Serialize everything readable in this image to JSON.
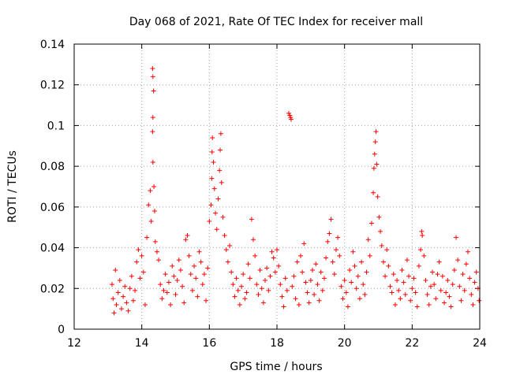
{
  "chart_data": {
    "type": "scatter",
    "title": "Day 068 of 2021, Rate Of TEC Index for receiver mall",
    "xlabel": "GPS time / hours",
    "ylabel": "ROTI / TECUs",
    "xlim": [
      12,
      24
    ],
    "ylim": [
      0,
      0.14
    ],
    "xticks": [
      12,
      14,
      16,
      18,
      20,
      22,
      24
    ],
    "xtick_labels": [
      "12",
      "14",
      "16",
      "18",
      "20",
      "22",
      "24"
    ],
    "yticks": [
      0,
      0.02,
      0.04,
      0.06,
      0.08,
      0.1,
      0.12,
      0.14
    ],
    "ytick_labels": [
      "0",
      "0.02",
      "0.04",
      "0.06",
      "0.08",
      "0.1",
      "0.12",
      "0.14"
    ],
    "grid": true,
    "marker": "+",
    "color": "#ff0000",
    "series": [
      {
        "name": "ROTI",
        "points": [
          [
            13.12,
            0.022
          ],
          [
            13.15,
            0.015
          ],
          [
            13.18,
            0.008
          ],
          [
            13.22,
            0.029
          ],
          [
            13.25,
            0.012
          ],
          [
            13.3,
            0.018
          ],
          [
            13.35,
            0.024
          ],
          [
            13.4,
            0.01
          ],
          [
            13.45,
            0.016
          ],
          [
            13.5,
            0.021
          ],
          [
            13.55,
            0.013
          ],
          [
            13.6,
            0.009
          ],
          [
            13.65,
            0.02
          ],
          [
            13.7,
            0.026
          ],
          [
            13.75,
            0.014
          ],
          [
            13.8,
            0.019
          ],
          [
            13.85,
            0.033
          ],
          [
            13.9,
            0.039
          ],
          [
            13.95,
            0.025
          ],
          [
            14.0,
            0.036
          ],
          [
            14.05,
            0.028
          ],
          [
            14.1,
            0.012
          ],
          [
            14.15,
            0.045
          ],
          [
            14.2,
            0.061
          ],
          [
            14.25,
            0.068
          ],
          [
            14.28,
            0.053
          ],
          [
            14.32,
            0.128
          ],
          [
            14.33,
            0.124
          ],
          [
            14.35,
            0.117
          ],
          [
            14.33,
            0.104
          ],
          [
            14.32,
            0.097
          ],
          [
            14.33,
            0.082
          ],
          [
            14.36,
            0.07
          ],
          [
            14.38,
            0.058
          ],
          [
            14.4,
            0.043
          ],
          [
            14.45,
            0.038
          ],
          [
            14.5,
            0.034
          ],
          [
            14.55,
            0.022
          ],
          [
            14.6,
            0.015
          ],
          [
            14.65,
            0.019
          ],
          [
            14.7,
            0.027
          ],
          [
            14.75,
            0.018
          ],
          [
            14.8,
            0.023
          ],
          [
            14.85,
            0.012
          ],
          [
            14.9,
            0.031
          ],
          [
            14.95,
            0.026
          ],
          [
            15.0,
            0.017
          ],
          [
            15.05,
            0.024
          ],
          [
            15.1,
            0.034
          ],
          [
            15.15,
            0.029
          ],
          [
            15.2,
            0.021
          ],
          [
            15.25,
            0.013
          ],
          [
            15.3,
            0.044
          ],
          [
            15.35,
            0.046
          ],
          [
            15.4,
            0.036
          ],
          [
            15.45,
            0.027
          ],
          [
            15.5,
            0.019
          ],
          [
            15.55,
            0.031
          ],
          [
            15.6,
            0.025
          ],
          [
            15.65,
            0.016
          ],
          [
            15.7,
            0.038
          ],
          [
            15.75,
            0.033
          ],
          [
            15.8,
            0.022
          ],
          [
            15.85,
            0.027
          ],
          [
            15.9,
            0.014
          ],
          [
            15.95,
            0.03
          ],
          [
            16.0,
            0.053
          ],
          [
            16.05,
            0.061
          ],
          [
            16.07,
            0.074
          ],
          [
            16.08,
            0.087
          ],
          [
            16.09,
            0.094
          ],
          [
            16.12,
            0.082
          ],
          [
            16.15,
            0.069
          ],
          [
            16.18,
            0.057
          ],
          [
            16.22,
            0.049
          ],
          [
            16.26,
            0.064
          ],
          [
            16.3,
            0.078
          ],
          [
            16.32,
            0.088
          ],
          [
            16.34,
            0.096
          ],
          [
            16.36,
            0.072
          ],
          [
            16.4,
            0.055
          ],
          [
            16.45,
            0.046
          ],
          [
            16.5,
            0.039
          ],
          [
            16.55,
            0.033
          ],
          [
            16.6,
            0.041
          ],
          [
            16.65,
            0.028
          ],
          [
            16.7,
            0.022
          ],
          [
            16.75,
            0.016
          ],
          [
            16.8,
            0.025
          ],
          [
            16.85,
            0.019
          ],
          [
            16.9,
            0.012
          ],
          [
            16.95,
            0.021
          ],
          [
            17.0,
            0.027
          ],
          [
            17.05,
            0.015
          ],
          [
            17.1,
            0.018
          ],
          [
            17.15,
            0.032
          ],
          [
            17.2,
            0.025
          ],
          [
            17.25,
            0.054
          ],
          [
            17.3,
            0.044
          ],
          [
            17.35,
            0.036
          ],
          [
            17.4,
            0.022
          ],
          [
            17.45,
            0.017
          ],
          [
            17.5,
            0.029
          ],
          [
            17.55,
            0.02
          ],
          [
            17.6,
            0.013
          ],
          [
            17.65,
            0.024
          ],
          [
            17.7,
            0.03
          ],
          [
            17.75,
            0.019
          ],
          [
            17.8,
            0.026
          ],
          [
            17.85,
            0.038
          ],
          [
            17.9,
            0.035
          ],
          [
            17.95,
            0.028
          ],
          [
            18.0,
            0.039
          ],
          [
            18.05,
            0.031
          ],
          [
            18.1,
            0.022
          ],
          [
            18.15,
            0.016
          ],
          [
            18.2,
            0.011
          ],
          [
            18.25,
            0.025
          ],
          [
            18.3,
            0.019
          ],
          [
            18.35,
            0.106
          ],
          [
            18.38,
            0.105
          ],
          [
            18.4,
            0.104
          ],
          [
            18.42,
            0.103
          ],
          [
            18.45,
            0.021
          ],
          [
            18.5,
            0.026
          ],
          [
            18.55,
            0.015
          ],
          [
            18.6,
            0.033
          ],
          [
            18.65,
            0.012
          ],
          [
            18.7,
            0.036
          ],
          [
            18.75,
            0.028
          ],
          [
            18.8,
            0.042
          ],
          [
            18.85,
            0.023
          ],
          [
            18.9,
            0.018
          ],
          [
            18.95,
            0.013
          ],
          [
            19.0,
            0.024
          ],
          [
            19.05,
            0.029
          ],
          [
            19.1,
            0.017
          ],
          [
            19.15,
            0.032
          ],
          [
            19.2,
            0.022
          ],
          [
            19.25,
            0.014
          ],
          [
            19.3,
            0.028
          ],
          [
            19.35,
            0.019
          ],
          [
            19.4,
            0.025
          ],
          [
            19.45,
            0.035
          ],
          [
            19.5,
            0.043
          ],
          [
            19.55,
            0.047
          ],
          [
            19.6,
            0.054
          ],
          [
            19.65,
            0.033
          ],
          [
            19.7,
            0.027
          ],
          [
            19.75,
            0.039
          ],
          [
            19.8,
            0.045
          ],
          [
            19.85,
            0.036
          ],
          [
            19.9,
            0.021
          ],
          [
            19.95,
            0.015
          ],
          [
            20.0,
            0.024
          ],
          [
            20.05,
            0.018
          ],
          [
            20.1,
            0.011
          ],
          [
            20.15,
            0.029
          ],
          [
            20.2,
            0.023
          ],
          [
            20.25,
            0.038
          ],
          [
            20.3,
            0.031
          ],
          [
            20.35,
            0.02
          ],
          [
            20.4,
            0.026
          ],
          [
            20.45,
            0.015
          ],
          [
            20.5,
            0.033
          ],
          [
            20.55,
            0.022
          ],
          [
            20.6,
            0.017
          ],
          [
            20.65,
            0.028
          ],
          [
            20.7,
            0.044
          ],
          [
            20.75,
            0.036
          ],
          [
            20.8,
            0.052
          ],
          [
            20.85,
            0.067
          ],
          [
            20.87,
            0.079
          ],
          [
            20.89,
            0.086
          ],
          [
            20.91,
            0.092
          ],
          [
            20.93,
            0.097
          ],
          [
            20.95,
            0.081
          ],
          [
            20.98,
            0.065
          ],
          [
            21.02,
            0.055
          ],
          [
            21.06,
            0.048
          ],
          [
            21.1,
            0.041
          ],
          [
            21.15,
            0.033
          ],
          [
            21.2,
            0.026
          ],
          [
            21.25,
            0.039
          ],
          [
            21.3,
            0.031
          ],
          [
            21.35,
            0.021
          ],
          [
            21.4,
            0.018
          ],
          [
            21.45,
            0.027
          ],
          [
            21.5,
            0.012
          ],
          [
            21.55,
            0.024
          ],
          [
            21.6,
            0.019
          ],
          [
            21.65,
            0.015
          ],
          [
            21.7,
            0.029
          ],
          [
            21.75,
            0.023
          ],
          [
            21.8,
            0.017
          ],
          [
            21.85,
            0.034
          ],
          [
            21.9,
            0.026
          ],
          [
            21.95,
            0.014
          ],
          [
            22.0,
            0.02
          ],
          [
            22.05,
            0.025
          ],
          [
            22.1,
            0.018
          ],
          [
            22.15,
            0.011
          ],
          [
            22.2,
            0.031
          ],
          [
            22.25,
            0.039
          ],
          [
            22.28,
            0.048
          ],
          [
            22.3,
            0.046
          ],
          [
            22.35,
            0.036
          ],
          [
            22.4,
            0.024
          ],
          [
            22.45,
            0.017
          ],
          [
            22.5,
            0.012
          ],
          [
            22.55,
            0.021
          ],
          [
            22.6,
            0.028
          ],
          [
            22.65,
            0.022
          ],
          [
            22.7,
            0.015
          ],
          [
            22.75,
            0.027
          ],
          [
            22.8,
            0.033
          ],
          [
            22.85,
            0.019
          ],
          [
            22.9,
            0.026
          ],
          [
            22.95,
            0.013
          ],
          [
            23.0,
            0.018
          ],
          [
            23.05,
            0.024
          ],
          [
            23.1,
            0.016
          ],
          [
            23.15,
            0.011
          ],
          [
            23.2,
            0.022
          ],
          [
            23.25,
            0.029
          ],
          [
            23.3,
            0.045
          ],
          [
            23.35,
            0.034
          ],
          [
            23.4,
            0.021
          ],
          [
            23.45,
            0.014
          ],
          [
            23.5,
            0.027
          ],
          [
            23.55,
            0.019
          ],
          [
            23.6,
            0.032
          ],
          [
            23.65,
            0.038
          ],
          [
            23.7,
            0.025
          ],
          [
            23.75,
            0.017
          ],
          [
            23.8,
            0.012
          ],
          [
            23.85,
            0.023
          ],
          [
            23.9,
            0.028
          ],
          [
            23.95,
            0.02
          ],
          [
            23.98,
            0.014
          ]
        ]
      }
    ]
  }
}
